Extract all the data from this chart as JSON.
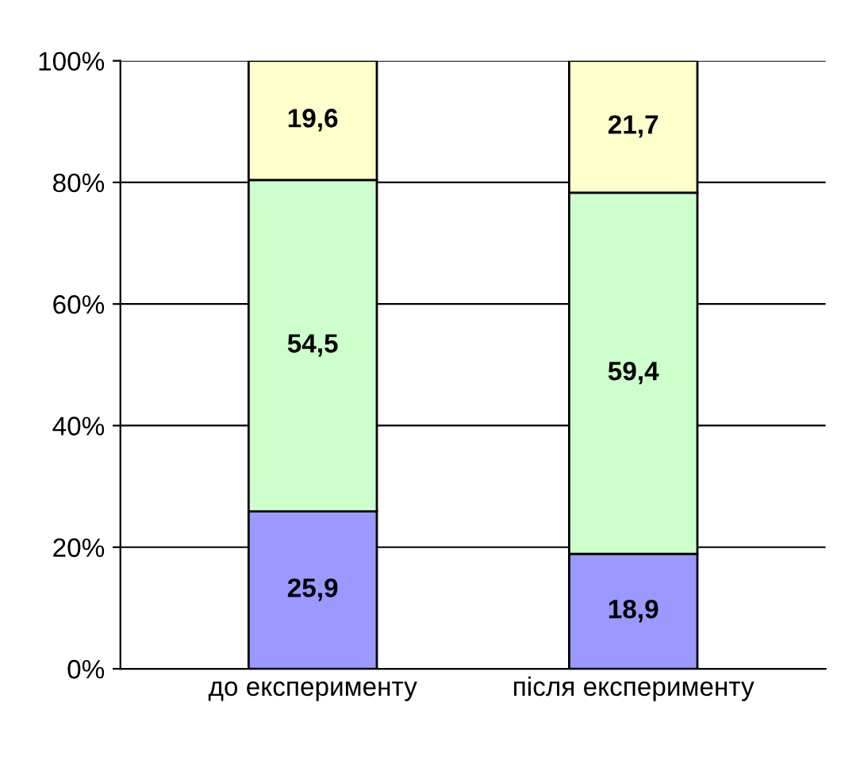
{
  "chart_data": {
    "type": "bar",
    "stacked": true,
    "categories": [
      "до експерименту",
      "після експерименту"
    ],
    "series": [
      {
        "color": "#9999ff",
        "values": [
          25.9,
          18.9
        ],
        "value_labels": [
          "25,9",
          "18,9"
        ]
      },
      {
        "color": "#ccffcc",
        "values": [
          54.5,
          59.4
        ],
        "value_labels": [
          "54,5",
          "59,4"
        ]
      },
      {
        "color": "#ffffcc",
        "values": [
          19.6,
          21.7
        ],
        "value_labels": [
          "19,6",
          "21,7"
        ]
      }
    ],
    "ylim": [
      0,
      100
    ],
    "yticks": [
      {
        "value": 0,
        "label": "0%"
      },
      {
        "value": 20,
        "label": "20%"
      },
      {
        "value": 40,
        "label": "40%"
      },
      {
        "value": 60,
        "label": "60%"
      },
      {
        "value": 80,
        "label": "80%"
      },
      {
        "value": 100,
        "label": "100%"
      }
    ],
    "grid": "y"
  }
}
